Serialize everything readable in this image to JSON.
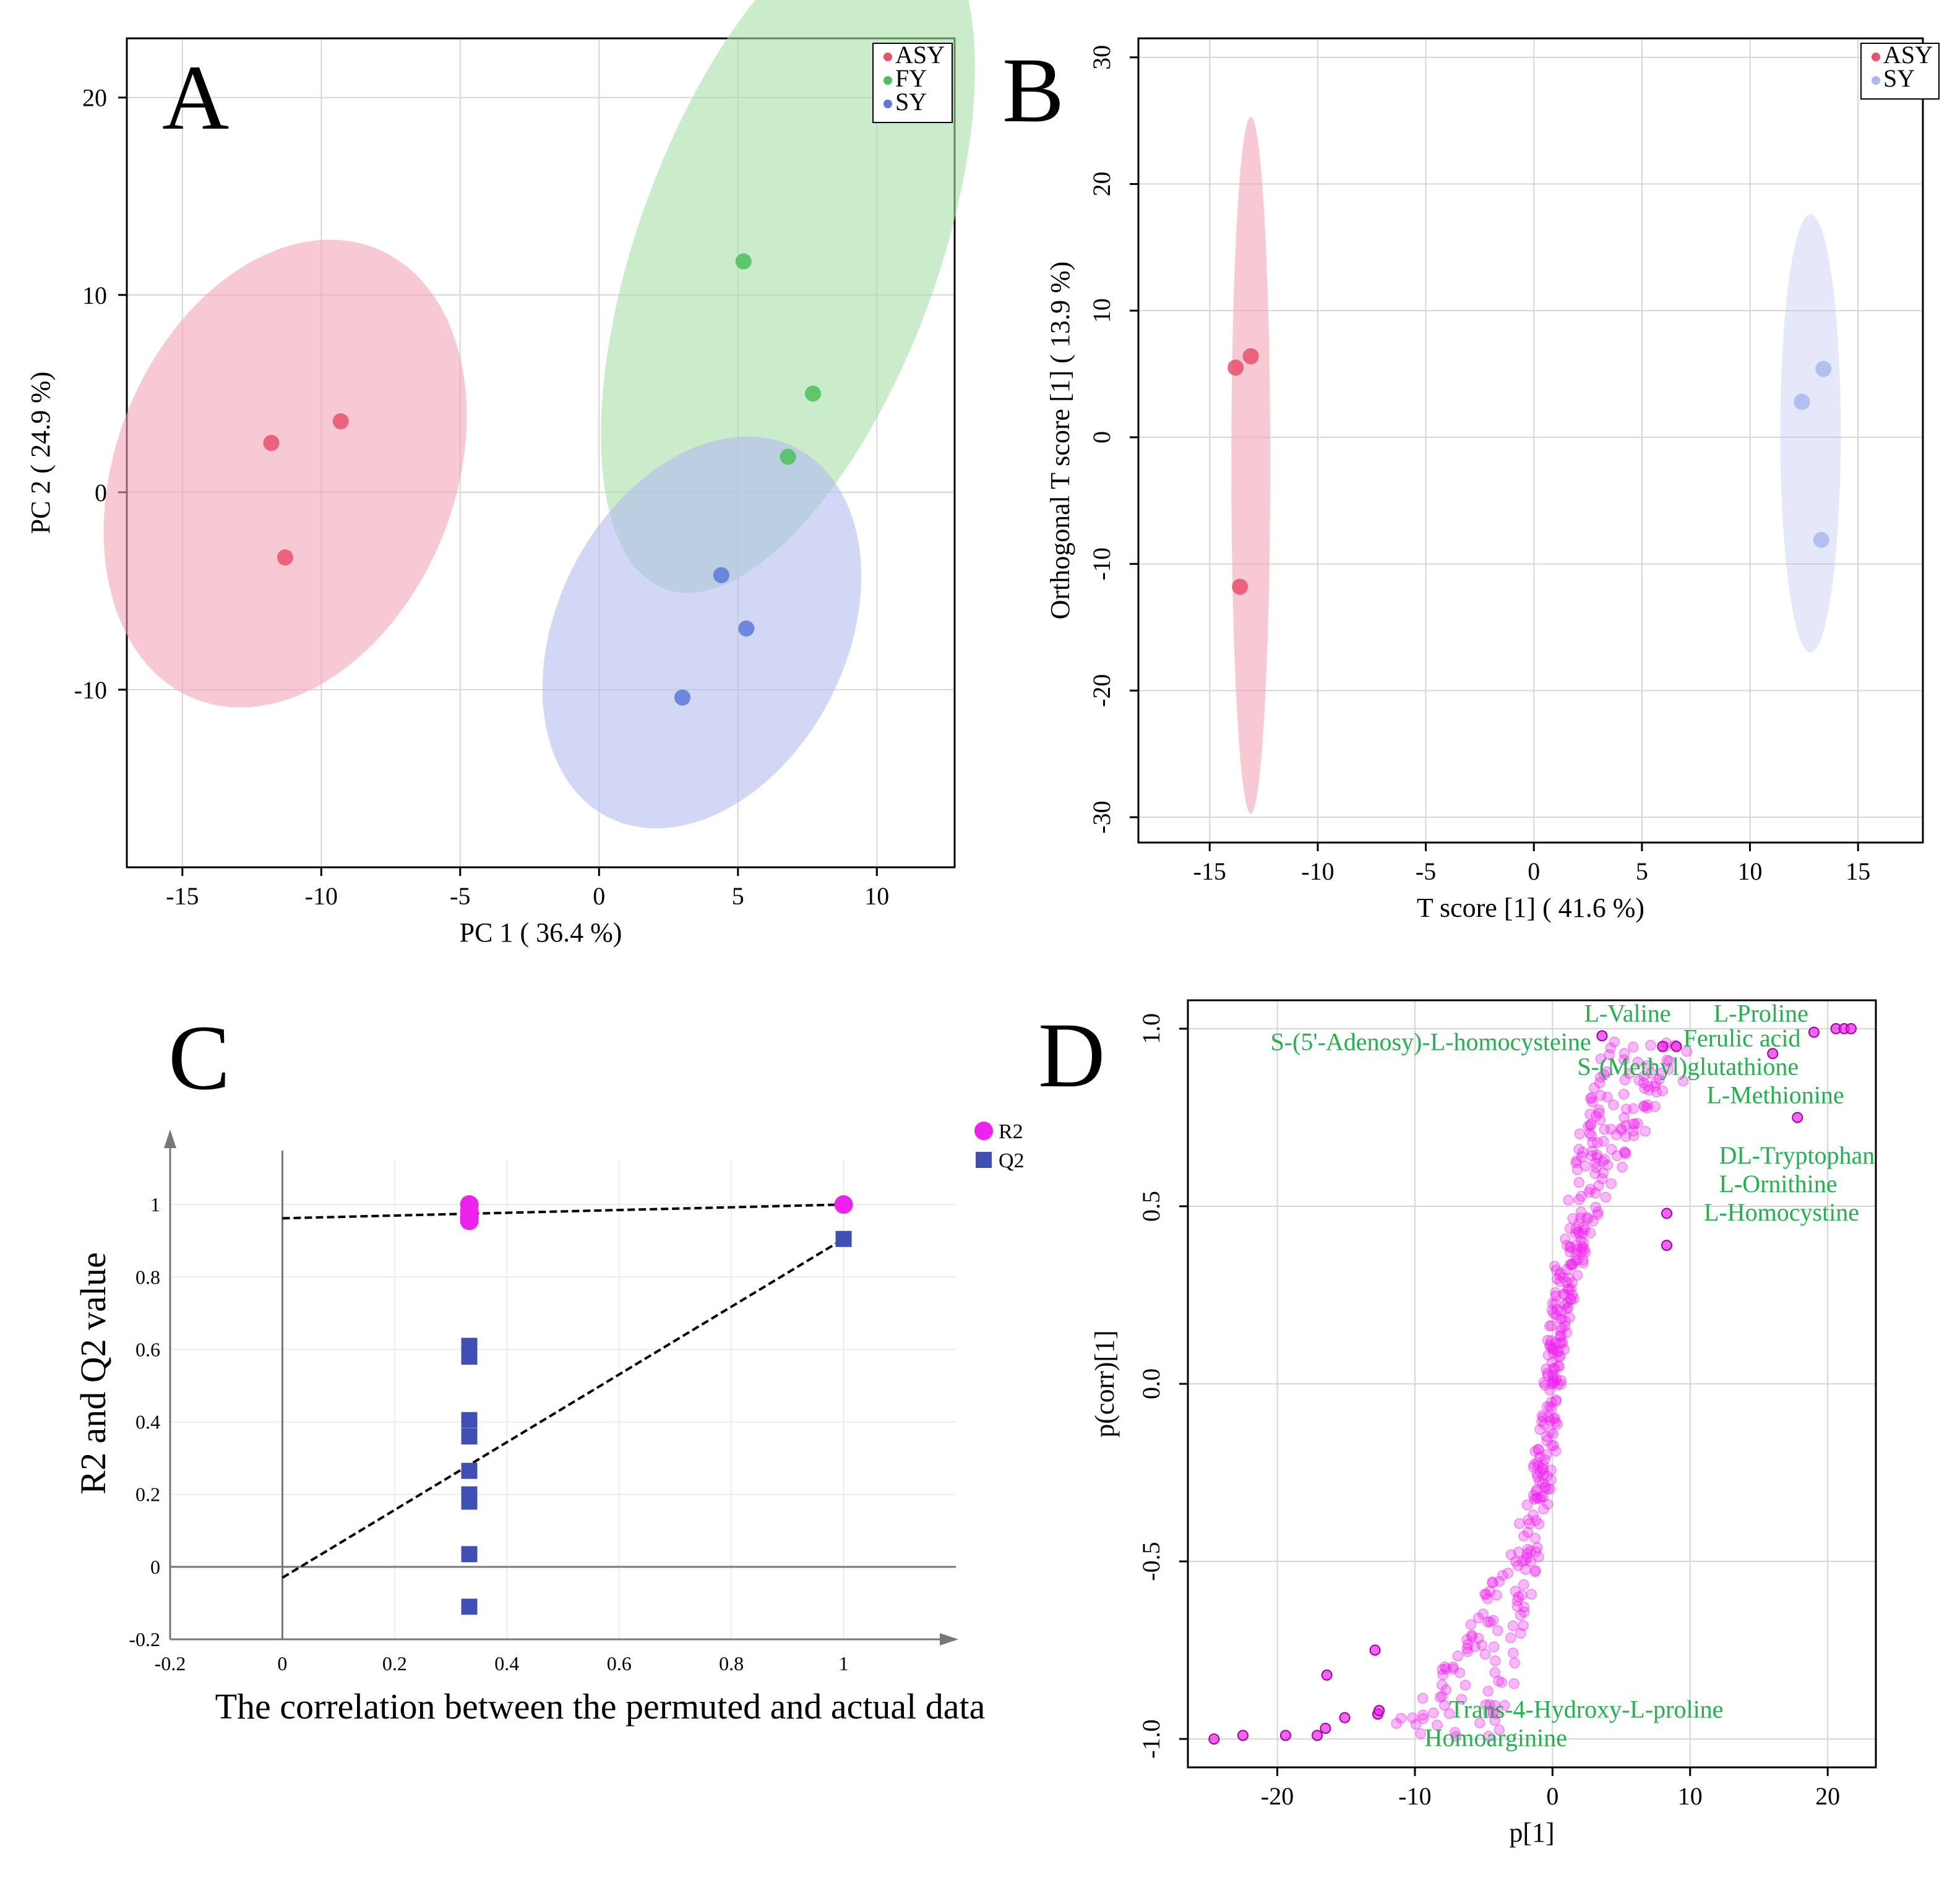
{
  "colors": {
    "asy": "#e8506e",
    "fy": "#4cc15a",
    "sy": "#5b79d8",
    "sy_light": "#a9b8ee",
    "ellipse_asy": "#f2a7b6",
    "ellipse_fy": "#a7dfa9",
    "ellipse_sy": "#b3bdef",
    "magenta": "#ee22ee",
    "q2_blue": "#3f4fb3",
    "annotation_green": "#22b14c",
    "grid": "#d6d6d6"
  },
  "chart_data": [
    {
      "panel": "A",
      "type": "scatter",
      "title": "A",
      "xlabel": "PC 1 ( 36.4 %)",
      "ylabel": "PC 2 ( 24.9 %)",
      "xlim": [
        -17,
        12.8
      ],
      "ylim": [
        -19,
        23
      ],
      "xticks": [
        -15,
        -10,
        -5,
        0,
        5,
        10
      ],
      "yticks": [
        -10,
        0,
        10,
        20
      ],
      "xtick_labels": [
        "-15",
        "-10",
        "-5",
        "0",
        "5",
        "10"
      ],
      "ytick_labels": [
        "-10",
        "0",
        "10",
        "20"
      ],
      "grid": true,
      "legend": [
        "ASY",
        "FY",
        "SY"
      ],
      "series": [
        {
          "name": "ASY",
          "points": [
            [
              -11.8,
              2.5
            ],
            [
              -9.3,
              3.6
            ],
            [
              -11.3,
              -3.3
            ]
          ],
          "ellipse": {
            "cx": -11.3,
            "cy": 0.95,
            "rx": 6.1,
            "ry": 12.3,
            "angle_deg": 22
          }
        },
        {
          "name": "FY",
          "points": [
            [
              5.2,
              11.7
            ],
            [
              7.7,
              5.0
            ],
            [
              6.8,
              1.8
            ]
          ],
          "ellipse": {
            "cx": 6.8,
            "cy": 12.2,
            "rx": 5.4,
            "ry": 18.2,
            "angle_deg": 20
          }
        },
        {
          "name": "SY",
          "points": [
            [
              4.4,
              -4.2
            ],
            [
              5.3,
              -6.9
            ],
            [
              3.0,
              -10.4
            ]
          ],
          "ellipse": {
            "cx": 3.7,
            "cy": -7.1,
            "rx": 5.2,
            "ry": 10.5,
            "angle_deg": 27
          }
        }
      ]
    },
    {
      "panel": "B",
      "type": "scatter",
      "title": "B",
      "xlabel": "T score [1] ( 41.6 %)",
      "ylabel": "Orthogonal T score [1] ( 13.9 %)",
      "xlim": [
        -18.3,
        18
      ],
      "ylim": [
        -32,
        31.5
      ],
      "xticks": [
        -15,
        -10,
        -5,
        0,
        5,
        10,
        15
      ],
      "yticks": [
        -30,
        -20,
        -10,
        0,
        10,
        20,
        30
      ],
      "xtick_labels": [
        "-15",
        "-10",
        "-5",
        "0",
        "5",
        "10",
        "15"
      ],
      "ytick_labels": [
        "-30",
        "-20",
        "-10",
        "0",
        "10",
        "20",
        "30"
      ],
      "grid": true,
      "legend": [
        "ASY",
        "SY"
      ],
      "series": [
        {
          "name": "ASY",
          "points": [
            [
              -13.8,
              5.5
            ],
            [
              -13.1,
              6.4
            ],
            [
              -13.6,
              -11.8
            ]
          ],
          "ellipse": {
            "cx": -13.1,
            "cy": -2.2,
            "rx": 0.9,
            "ry": 27.5,
            "angle_deg": 0
          }
        },
        {
          "name": "SY",
          "points": [
            [
              12.4,
              2.8
            ],
            [
              13.4,
              5.4
            ],
            [
              13.3,
              -8.1
            ]
          ],
          "ellipse": {
            "cx": 12.8,
            "cy": 0.3,
            "rx": 1.4,
            "ry": 17.3,
            "angle_deg": 0
          }
        }
      ]
    },
    {
      "panel": "C",
      "type": "scatter",
      "title": "C",
      "xlabel": "The correlation between the permuted and actual data",
      "ylabel": "R2 and Q2 value",
      "xlim": [
        -0.2,
        1.2
      ],
      "ylim": [
        -0.2,
        1.2
      ],
      "xticks": [
        -0.2,
        0,
        0.2,
        0.4,
        0.6,
        0.8,
        1
      ],
      "yticks": [
        -0.2,
        0,
        0.2,
        0.4,
        0.6,
        0.8,
        1
      ],
      "xtick_labels": [
        "-0.2",
        "0",
        "0.2",
        "0.4",
        "0.6",
        "0.8",
        "1"
      ],
      "ytick_labels": [
        "-0.2",
        "0",
        "0.2",
        "0.4",
        "0.6",
        "0.8",
        "1"
      ],
      "grid": true,
      "legend": [
        "R2",
        "Q2"
      ],
      "series": [
        {
          "name": "R2",
          "marker": "circle",
          "x": [
            0.333,
            0.333,
            0.333,
            0.333,
            1.0
          ],
          "y": [
            1.0,
            0.98,
            0.965,
            0.955,
            1.0
          ],
          "regression": [
            [
              0,
              0.962
            ],
            [
              1.0,
              1.0
            ]
          ]
        },
        {
          "name": "Q2",
          "marker": "square",
          "x": [
            0.333,
            0.333,
            0.333,
            0.333,
            0.333,
            0.333,
            0.333,
            0.333,
            0.333,
            0.333,
            1.0
          ],
          "y": [
            0.61,
            0.58,
            0.405,
            0.36,
            0.265,
            0.2,
            0.18,
            0.035,
            -0.11,
            0.6,
            0.905
          ],
          "regression": [
            [
              0,
              -0.03
            ],
            [
              1.0,
              0.905
            ]
          ]
        }
      ]
    },
    {
      "panel": "D",
      "type": "scatter",
      "title": "D",
      "xlabel": "p[1]",
      "ylabel": "p(corr)[1]",
      "xlim": [
        -26.5,
        23.5
      ],
      "ylim": [
        -1.08,
        1.08
      ],
      "xticks": [
        -20,
        -10,
        0,
        10,
        20
      ],
      "yticks": [
        -1.0,
        -0.5,
        0.0,
        0.5,
        1.0
      ],
      "xtick_labels": [
        "-20",
        "-10",
        "0",
        "10",
        "20"
      ],
      "ytick_labels": [
        "-1.0",
        "-0.5",
        "0.0",
        "0.5",
        "1.0"
      ],
      "grid": true,
      "highlighted_points": [
        [
          -24.6,
          -1.0
        ],
        [
          -22.5,
          -0.99
        ],
        [
          -19.4,
          -0.99
        ],
        [
          -17.1,
          -0.99
        ],
        [
          -16.5,
          -0.97
        ],
        [
          -15.1,
          -0.94
        ],
        [
          -12.7,
          -0.93
        ],
        [
          -12.6,
          -0.92
        ],
        [
          -16.4,
          -0.82
        ],
        [
          -12.9,
          -0.75
        ],
        [
          3.6,
          0.98
        ],
        [
          16.0,
          0.93
        ],
        [
          19.0,
          0.99
        ],
        [
          20.6,
          1.0
        ],
        [
          21.2,
          1.0
        ],
        [
          21.7,
          1.0
        ],
        [
          17.8,
          0.75
        ],
        [
          8.3,
          0.48
        ],
        [
          8.3,
          0.39
        ],
        [
          8.0,
          0.95
        ],
        [
          9.0,
          0.95
        ]
      ],
      "annotations": [
        {
          "text": "L-Valine",
          "x": 2.3,
          "y": 1.02
        },
        {
          "text": "L-Proline",
          "x": 11.7,
          "y": 1.02
        },
        {
          "text": "Ferulic acid",
          "x": 9.5,
          "y": 0.95
        },
        {
          "text": "S-(5'-Adenosy)-L-homocysteine",
          "x": -20.5,
          "y": 0.94
        },
        {
          "text": "S-(Methyl)glutathione",
          "x": 1.8,
          "y": 0.87
        },
        {
          "text": "L-Methionine",
          "x": 11.2,
          "y": 0.79
        },
        {
          "text": "DL-Tryptophan",
          "x": 12.1,
          "y": 0.62
        },
        {
          "text": "L-Ornithine",
          "x": 12.1,
          "y": 0.54
        },
        {
          "text": "L-Homocystine",
          "x": 11.0,
          "y": 0.46
        },
        {
          "text": "Trans-4-Hydroxy-L-proline",
          "x": -7.5,
          "y": -0.94
        },
        {
          "text": "Homoarginine",
          "x": -9.3,
          "y": -1.02
        }
      ]
    }
  ]
}
